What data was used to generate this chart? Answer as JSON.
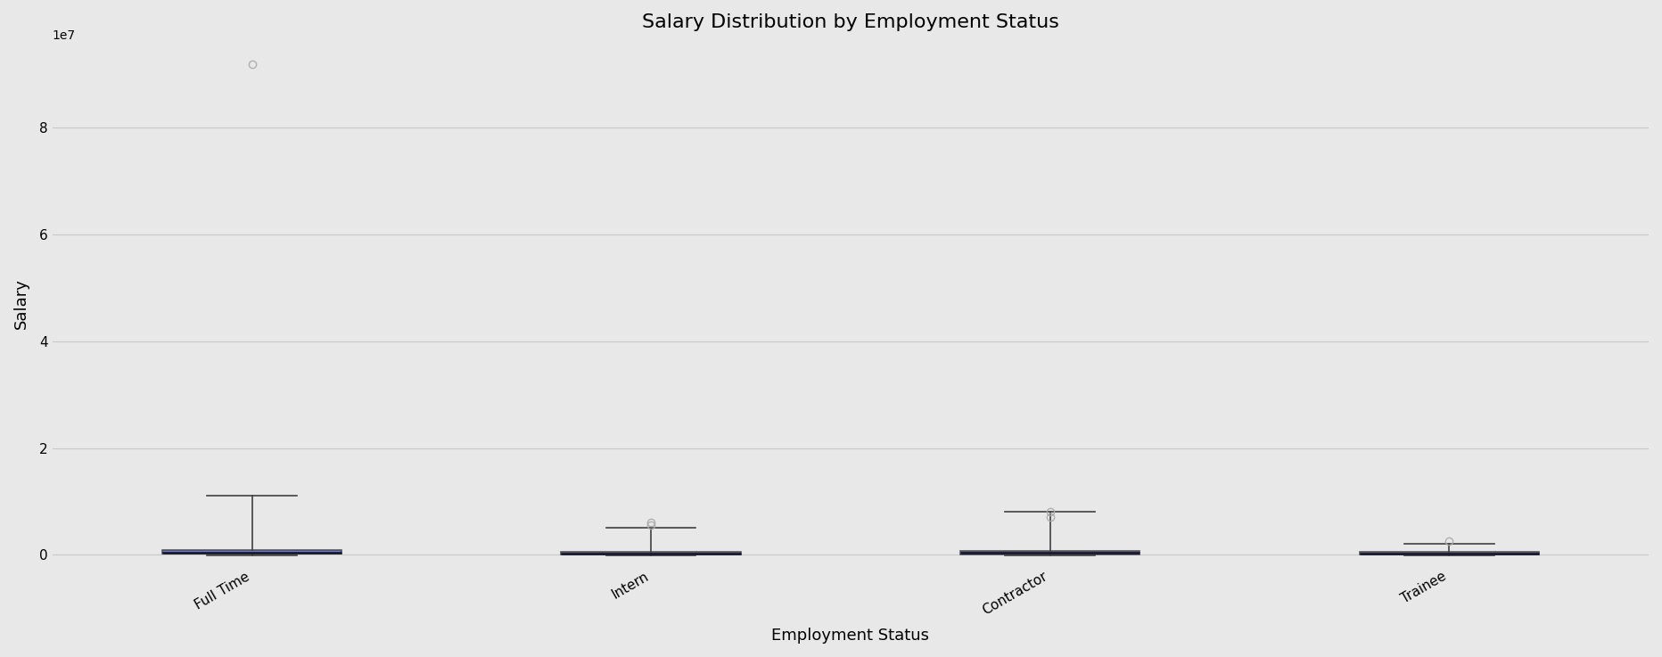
{
  "title": "Salary Distribution by Employment Status",
  "xlabel": "Employment Status",
  "ylabel": "Salary",
  "categories": [
    "Full Time",
    "Intern",
    "Contractor",
    "Trainee"
  ],
  "background_color": "#e8e8e8",
  "grid_color": "#d0d0d0",
  "box_colors": [
    "#5a6eb0",
    "#6e6e7e",
    "#6e6e7e",
    "#6e6e7e"
  ],
  "median_color": "#1a1a2e",
  "whisker_color": "#404040",
  "flier_color": "#aaaaaa",
  "box_data": {
    "Full Time": {
      "q1": 200000,
      "median": 400000,
      "q3": 900000,
      "whislo": -200000,
      "whishi": 11000000,
      "fliers": [
        92000000
      ]
    },
    "Intern": {
      "q1": 50000,
      "median": 200000,
      "q3": 600000,
      "whislo": -100000,
      "whishi": 5000000,
      "fliers": [
        6000000,
        5500000
      ]
    },
    "Contractor": {
      "q1": 100000,
      "median": 300000,
      "q3": 700000,
      "whislo": -100000,
      "whishi": 8000000,
      "fliers": [
        7000000,
        8000000
      ]
    },
    "Trainee": {
      "q1": 50000,
      "median": 200000,
      "q3": 500000,
      "whislo": -50000,
      "whishi": 2000000,
      "fliers": [
        2500000
      ]
    }
  },
  "ylim": [
    -2000000,
    96000000
  ],
  "yticks": [
    0,
    20000000,
    40000000,
    60000000,
    80000000
  ],
  "title_fontsize": 16,
  "label_fontsize": 13,
  "tick_fontsize": 11
}
